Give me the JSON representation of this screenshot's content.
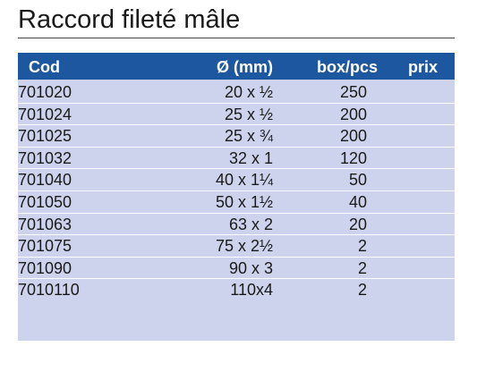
{
  "title": "Raccord fileté mâle",
  "table": {
    "headers": {
      "cod": "Cod",
      "dim": "Ø (mm)",
      "box": "box/pcs",
      "prix": "prix"
    },
    "rows": [
      {
        "cod": "701020",
        "dim": "20 x ½",
        "box": "250",
        "prix": ""
      },
      {
        "cod": "701024",
        "dim": "25 x ½",
        "box": "200",
        "prix": ""
      },
      {
        "cod": "701025",
        "dim": "25 x ¾",
        "box": "200",
        "prix": ""
      },
      {
        "cod": "701032",
        "dim": "32 x 1",
        "box": "120",
        "prix": ""
      },
      {
        "cod": "701040",
        "dim": "40 x 1¼",
        "box": "50",
        "prix": ""
      },
      {
        "cod": "701050",
        "dim": "50 x 1½",
        "box": "40",
        "prix": ""
      },
      {
        "cod": "701063",
        "dim": "63 x 2",
        "box": "20",
        "prix": ""
      },
      {
        "cod": "701075",
        "dim": "75 x 2½",
        "box": "2",
        "prix": ""
      },
      {
        "cod": "701090",
        "dim": "90 x 3",
        "box": "2",
        "prix": ""
      },
      {
        "cod": "7010110",
        "dim": "110x4",
        "box": "2",
        "prix": ""
      }
    ]
  },
  "colors": {
    "header_bg": "#1c57a0",
    "body_bg": "#cdd3ec"
  }
}
